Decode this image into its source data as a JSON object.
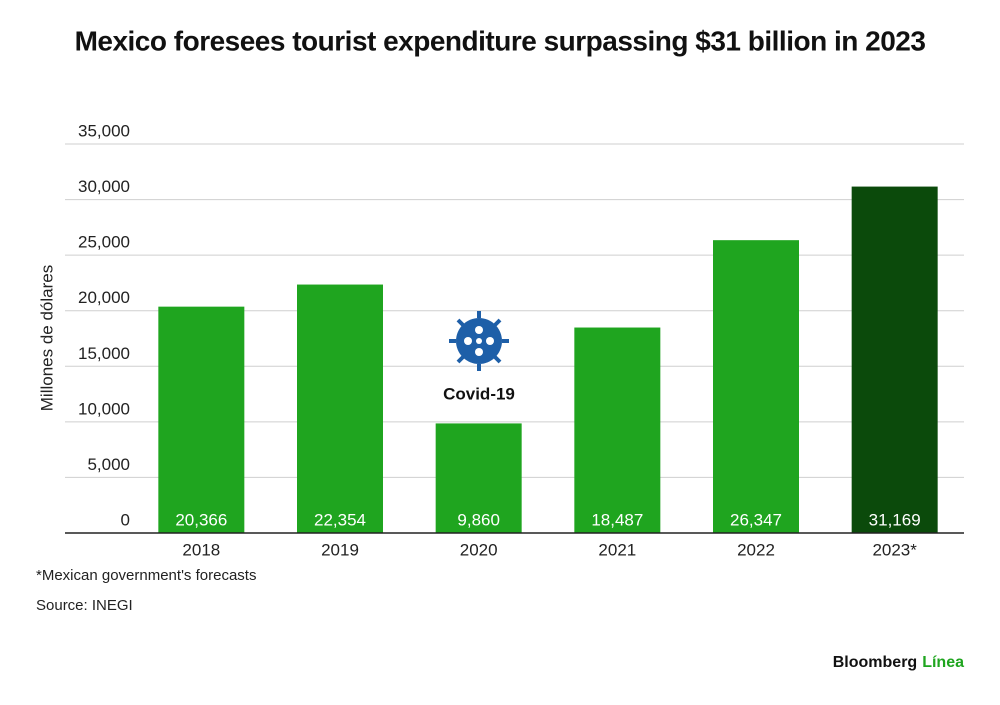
{
  "chart_data": {
    "type": "bar",
    "title": "Mexico foresees tourist expenditure surpassing $31 billion in 2023",
    "y_label": "Millones de dólares",
    "categories": [
      "2018",
      "2019",
      "2020",
      "2021",
      "2022",
      "2023*"
    ],
    "values": [
      20366,
      22354,
      9860,
      18487,
      26347,
      31169
    ],
    "value_labels": [
      "20,366",
      "22,354",
      "9,860",
      "18,487",
      "26,347",
      "31,169"
    ],
    "colors": [
      "#1fa51f",
      "#1fa51f",
      "#1fa51f",
      "#1fa51f",
      "#1fa51f",
      "#0b4a0b"
    ],
    "ylim": [
      0,
      35000
    ],
    "yticks": [
      0,
      {
        "value": 5000,
        "label": "5,000"
      },
      {
        "value": 10000,
        "label": "10,000"
      },
      {
        "value": 15000,
        "label": "15,000"
      },
      {
        "value": 20000,
        "label": "20,000"
      },
      {
        "value": 25000,
        "label": "25,000"
      },
      {
        "value": 30000,
        "label": "30,000"
      },
      {
        "value": 35000,
        "label": "35,000"
      }
    ],
    "grid": true,
    "annotation": "Covid-19",
    "footnote": "*Mexican government's forecasts",
    "source": "Source: INEGI",
    "brand": [
      "Bloomberg",
      "Línea"
    ]
  }
}
